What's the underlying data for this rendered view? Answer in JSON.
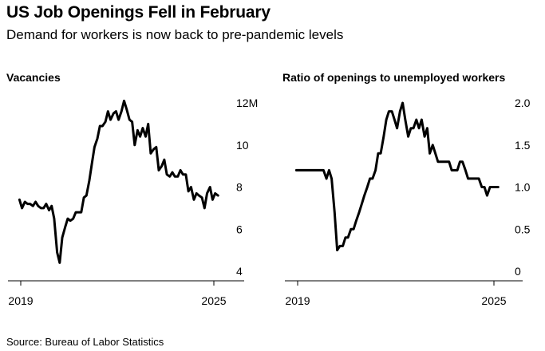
{
  "header": {
    "title": "US Job Openings Fell in February",
    "subtitle": "Demand for workers is now back to pre-pandemic levels"
  },
  "footer": {
    "source": "Source: Bureau of Labor Statistics"
  },
  "colors": {
    "line": "#000000",
    "axis": "#000000",
    "background": "#ffffff"
  },
  "chart_data": [
    {
      "type": "line",
      "title": "Vacancies",
      "xlabel": "",
      "ylabel": "",
      "x_ticks": [
        {
          "value": 2019,
          "label": "2019"
        },
        {
          "value": 2025,
          "label": "2025"
        }
      ],
      "y_ticks": [
        {
          "value": 4,
          "label": "4"
        },
        {
          "value": 6,
          "label": "6"
        },
        {
          "value": 8,
          "label": "8"
        },
        {
          "value": 10,
          "label": "10"
        },
        {
          "value": 12,
          "label": "12M"
        }
      ],
      "xlim": [
        2019,
        2025.17
      ],
      "ylim": [
        4,
        12
      ],
      "grid": false,
      "series": [
        {
          "x": [
            2018.96,
            2019.04,
            2019.13,
            2019.21,
            2019.29,
            2019.38,
            2019.46,
            2019.54,
            2019.63,
            2019.71,
            2019.79,
            2019.88,
            2019.96,
            2020.04,
            2020.13,
            2020.21,
            2020.29,
            2020.38,
            2020.46,
            2020.54,
            2020.63,
            2020.71,
            2020.79,
            2020.88,
            2020.96,
            2021.04,
            2021.13,
            2021.21,
            2021.29,
            2021.38,
            2021.46,
            2021.54,
            2021.63,
            2021.71,
            2021.79,
            2021.88,
            2021.96,
            2022.04,
            2022.13,
            2022.21,
            2022.29,
            2022.38,
            2022.46,
            2022.54,
            2022.63,
            2022.71,
            2022.79,
            2022.88,
            2022.96,
            2023.04,
            2023.13,
            2023.21,
            2023.29,
            2023.38,
            2023.46,
            2023.54,
            2023.63,
            2023.71,
            2023.79,
            2023.88,
            2023.96,
            2024.04,
            2024.13,
            2024.21,
            2024.29,
            2024.38,
            2024.46,
            2024.54,
            2024.63,
            2024.71,
            2024.79,
            2024.88,
            2024.96,
            2025.04,
            2025.13
          ],
          "y": [
            7.4,
            7.0,
            7.3,
            7.2,
            7.2,
            7.1,
            7.3,
            7.1,
            7.0,
            7.0,
            7.2,
            6.9,
            7.1,
            6.5,
            4.9,
            4.4,
            5.6,
            6.1,
            6.5,
            6.4,
            6.5,
            6.8,
            6.8,
            6.8,
            7.5,
            7.6,
            8.3,
            9.1,
            9.9,
            10.3,
            10.9,
            10.9,
            11.1,
            11.6,
            11.2,
            11.5,
            11.6,
            11.2,
            11.6,
            12.1,
            11.7,
            11.2,
            11.1,
            10.0,
            10.7,
            10.4,
            10.8,
            10.4,
            11.0,
            9.6,
            9.8,
            9.9,
            8.8,
            9.0,
            9.3,
            8.6,
            8.5,
            8.7,
            8.5,
            8.5,
            8.8,
            8.6,
            8.6,
            7.8,
            8.0,
            7.4,
            7.7,
            7.6,
            7.5,
            7.0,
            7.7,
            8.0,
            7.4,
            7.7,
            7.6
          ]
        }
      ]
    },
    {
      "type": "line",
      "title": "Ratio of openings to unemployed workers",
      "xlabel": "",
      "ylabel": "",
      "x_ticks": [
        {
          "value": 2019,
          "label": "2019"
        },
        {
          "value": 2025,
          "label": "2025"
        }
      ],
      "y_ticks": [
        {
          "value": 0,
          "label": "0"
        },
        {
          "value": 0.5,
          "label": "0.5"
        },
        {
          "value": 1.0,
          "label": "1.0"
        },
        {
          "value": 1.5,
          "label": "1.5"
        },
        {
          "value": 2.0,
          "label": "2.0"
        }
      ],
      "xlim": [
        2019,
        2025.17
      ],
      "ylim": [
        0,
        2.0
      ],
      "grid": false,
      "series": [
        {
          "x": [
            2018.96,
            2019.04,
            2019.13,
            2019.21,
            2019.29,
            2019.38,
            2019.46,
            2019.54,
            2019.63,
            2019.71,
            2019.79,
            2019.88,
            2019.96,
            2020.04,
            2020.13,
            2020.21,
            2020.29,
            2020.38,
            2020.46,
            2020.54,
            2020.63,
            2020.71,
            2020.79,
            2020.88,
            2020.96,
            2021.04,
            2021.13,
            2021.21,
            2021.29,
            2021.38,
            2021.46,
            2021.54,
            2021.63,
            2021.71,
            2021.79,
            2021.88,
            2021.96,
            2022.04,
            2022.13,
            2022.21,
            2022.29,
            2022.38,
            2022.46,
            2022.54,
            2022.63,
            2022.71,
            2022.79,
            2022.88,
            2022.96,
            2023.04,
            2023.13,
            2023.21,
            2023.29,
            2023.38,
            2023.46,
            2023.54,
            2023.63,
            2023.71,
            2023.79,
            2023.88,
            2023.96,
            2024.04,
            2024.13,
            2024.21,
            2024.29,
            2024.38,
            2024.46,
            2024.54,
            2024.63,
            2024.71,
            2024.79,
            2024.88,
            2024.96,
            2025.04,
            2025.13
          ],
          "y": [
            1.2,
            1.2,
            1.2,
            1.2,
            1.2,
            1.2,
            1.2,
            1.2,
            1.2,
            1.2,
            1.2,
            1.1,
            1.2,
            1.1,
            0.7,
            0.25,
            0.3,
            0.3,
            0.4,
            0.4,
            0.5,
            0.5,
            0.6,
            0.7,
            0.8,
            0.9,
            1.0,
            1.1,
            1.1,
            1.2,
            1.4,
            1.4,
            1.6,
            1.8,
            1.9,
            1.9,
            1.8,
            1.7,
            1.9,
            2.0,
            1.8,
            1.6,
            1.7,
            1.7,
            1.8,
            1.7,
            1.8,
            1.6,
            1.7,
            1.4,
            1.5,
            1.4,
            1.3,
            1.3,
            1.3,
            1.3,
            1.3,
            1.2,
            1.2,
            1.2,
            1.3,
            1.3,
            1.2,
            1.1,
            1.1,
            1.1,
            1.1,
            1.1,
            1.0,
            1.0,
            0.9,
            1.0,
            1.0,
            1.0,
            1.0
          ]
        }
      ]
    }
  ]
}
